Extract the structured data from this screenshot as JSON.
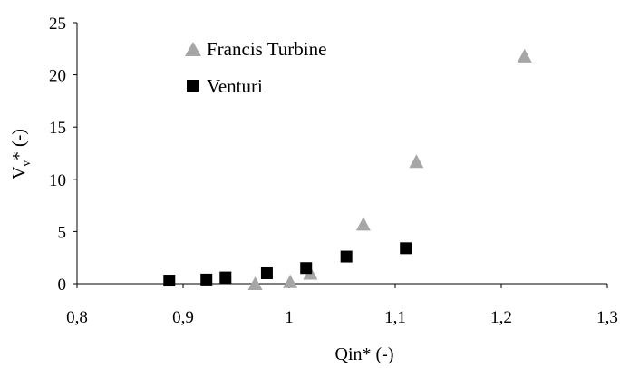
{
  "chart_data": {
    "type": "scatter",
    "xlabel": "Qin* (-)",
    "ylabel_main": "V",
    "ylabel_sub": "v",
    "ylabel_rest": "* (-)",
    "xlim": [
      0.8,
      1.3
    ],
    "ylim": [
      0,
      25
    ],
    "x_ticks": [
      0.8,
      0.9,
      1.0,
      1.1,
      1.2,
      1.3
    ],
    "x_tick_labels": [
      "0,8",
      "0,9",
      "1",
      "1,1",
      "1,2",
      "1,3"
    ],
    "y_ticks": [
      0,
      5,
      10,
      15,
      20,
      25
    ],
    "y_tick_labels": [
      "0",
      "5",
      "10",
      "15",
      "20",
      "25"
    ],
    "grid": false,
    "legend_position": "top-left",
    "series": [
      {
        "name": "Francis Turbine",
        "marker": "triangle",
        "color": "#a6a6a6",
        "points": [
          {
            "x": 0.968,
            "y": 0.0
          },
          {
            "x": 1.001,
            "y": 0.2
          },
          {
            "x": 1.02,
            "y": 1.0
          },
          {
            "x": 1.07,
            "y": 5.7
          },
          {
            "x": 1.12,
            "y": 11.7
          },
          {
            "x": 1.222,
            "y": 21.8
          }
        ]
      },
      {
        "name": "Venturi",
        "marker": "square",
        "color": "#000000",
        "points": [
          {
            "x": 0.887,
            "y": 0.3
          },
          {
            "x": 0.922,
            "y": 0.4
          },
          {
            "x": 0.94,
            "y": 0.6
          },
          {
            "x": 0.979,
            "y": 1.0
          },
          {
            "x": 1.016,
            "y": 1.5
          },
          {
            "x": 1.054,
            "y": 2.6
          },
          {
            "x": 1.11,
            "y": 3.4
          }
        ]
      }
    ]
  }
}
